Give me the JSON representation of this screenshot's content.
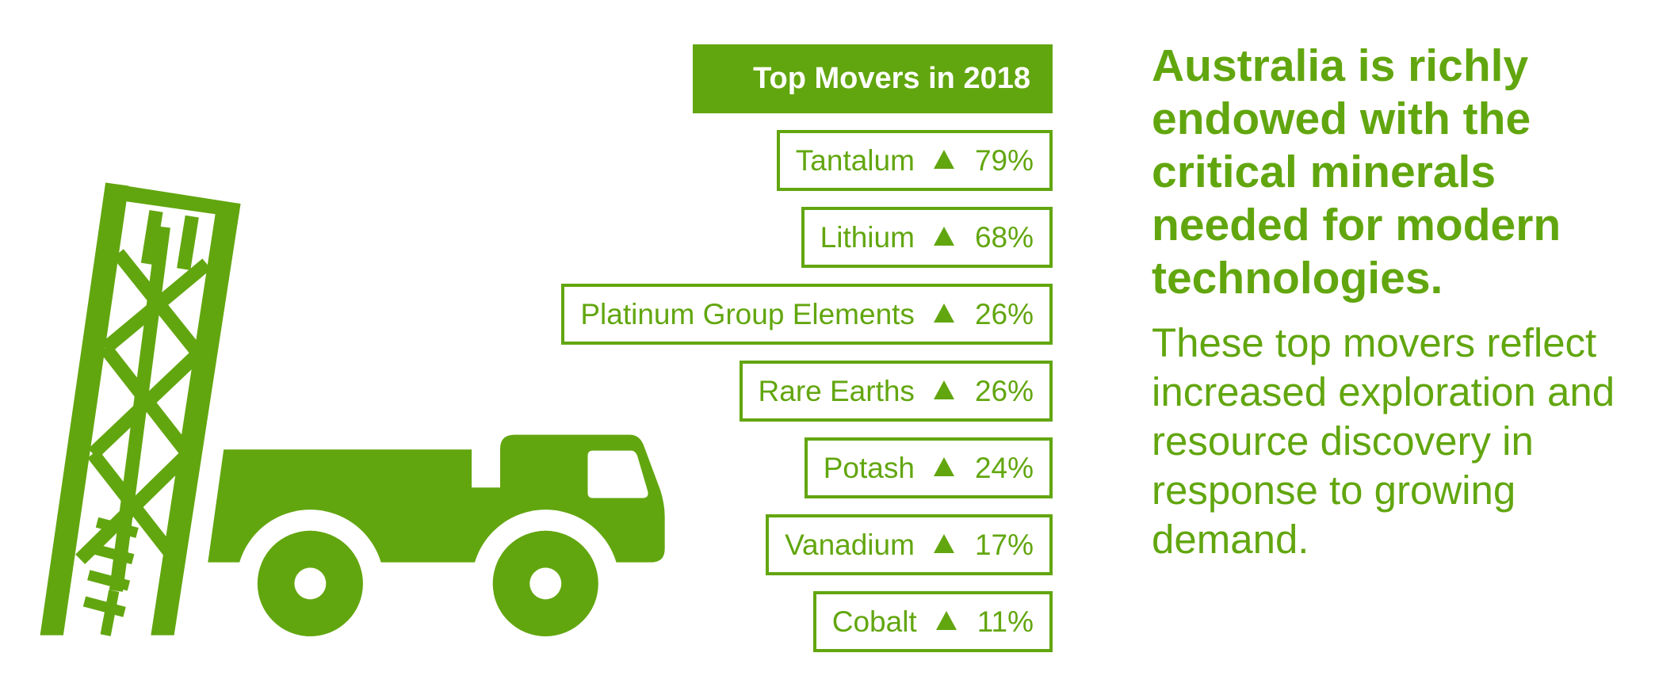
{
  "panel": {
    "title": "Top Movers in 2018",
    "items": [
      {
        "name": "Tantalum",
        "change": "79%"
      },
      {
        "name": "Lithium",
        "change": "68%"
      },
      {
        "name": "Platinum Group Elements",
        "change": "26%"
      },
      {
        "name": "Rare Earths",
        "change": "26%"
      },
      {
        "name": "Potash",
        "change": "24%"
      },
      {
        "name": "Vanadium",
        "change": "17%"
      },
      {
        "name": "Cobalt",
        "change": "11%"
      }
    ]
  },
  "headline": "Australia is richly endowed with the critical minerals needed for modern technologies.",
  "body": "These top movers reflect increased exploration and resource discovery in response to growing demand.",
  "icons": [
    "drilling-rig-icon",
    "truck-icon",
    "up-triangle-icon"
  ],
  "colors": {
    "brand": "#62a60f"
  }
}
